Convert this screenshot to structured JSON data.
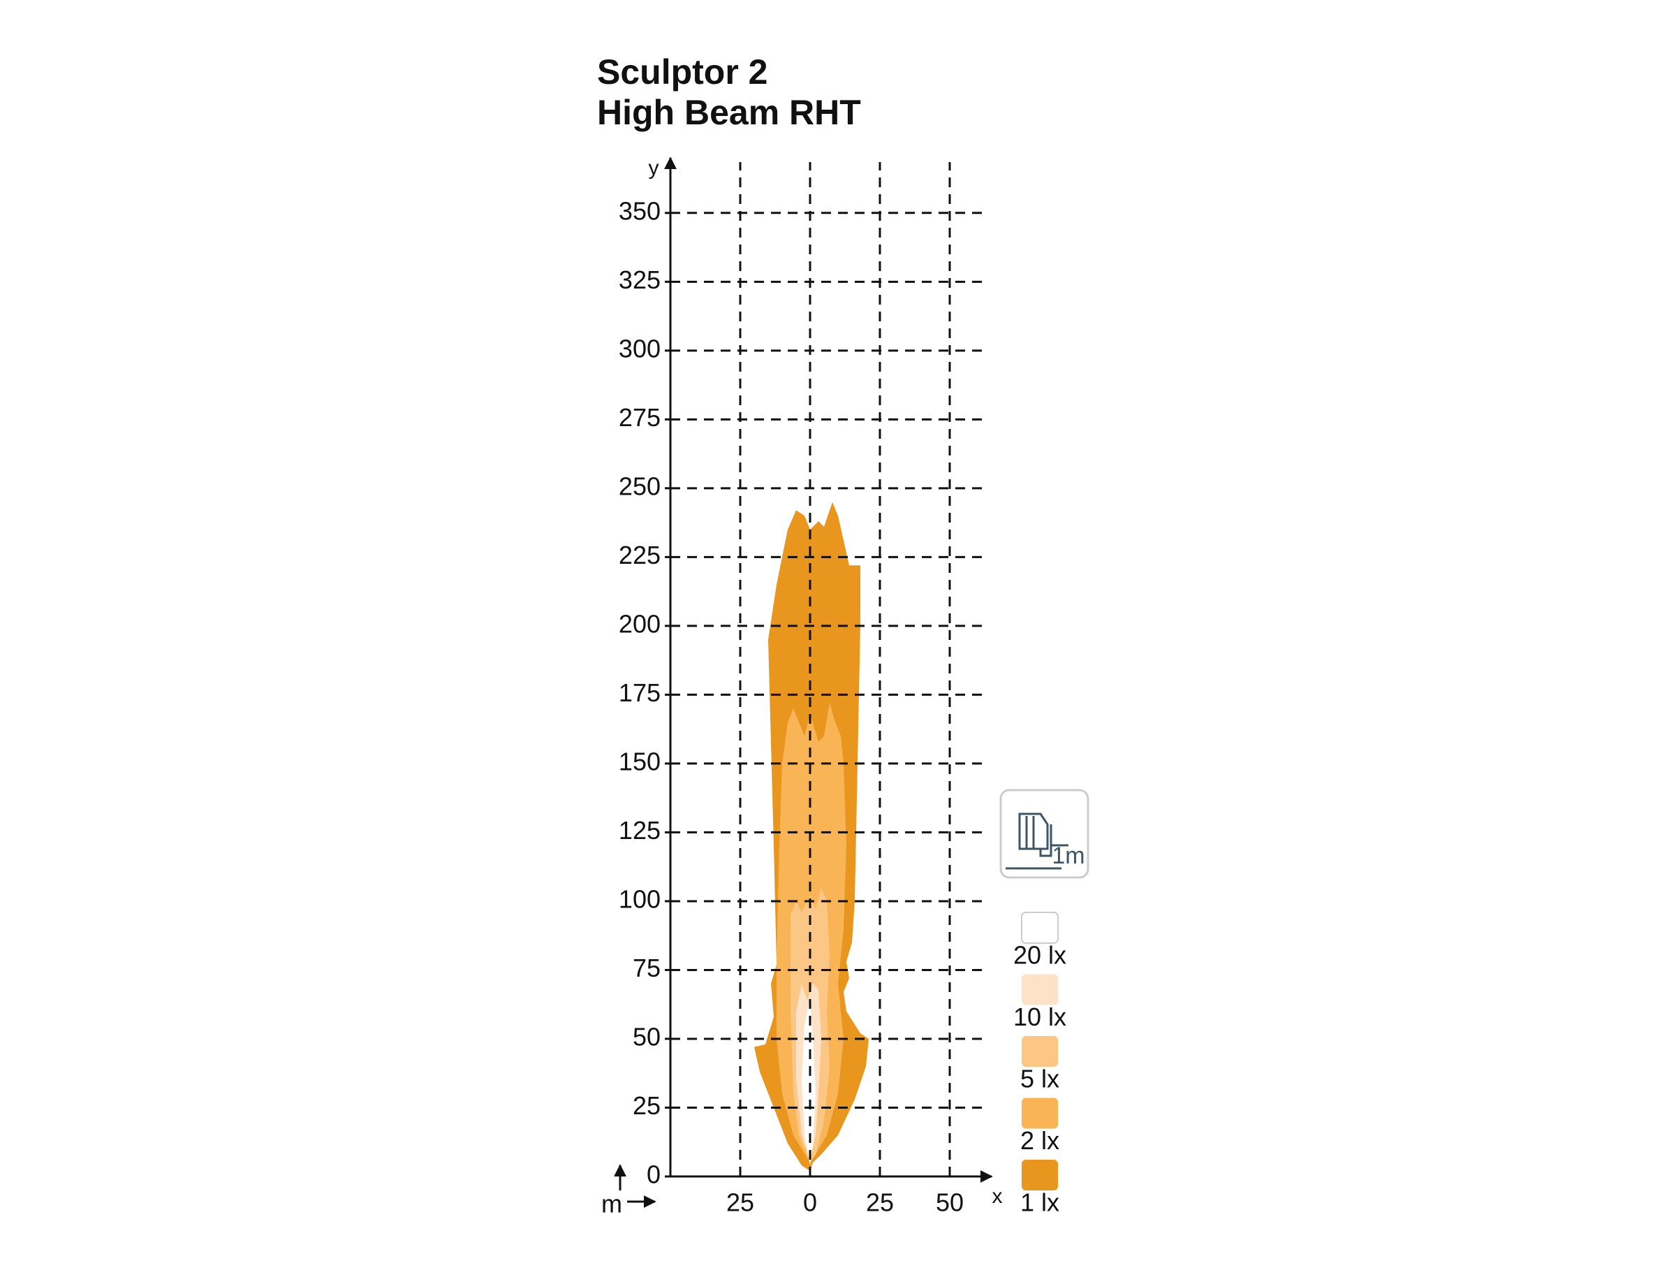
{
  "chart_data": {
    "type": "isolux",
    "title": [
      "Sculptor 2",
      "High Beam RHT"
    ],
    "x_label": "x",
    "y_label": "y",
    "unit_label": "m",
    "mounting_height_label": "1m",
    "xlim": [
      -50,
      65
    ],
    "ylim": [
      0,
      370
    ],
    "xticks": [
      {
        "value": -25,
        "label": "25"
      },
      0,
      25,
      50
    ],
    "yticks": [
      0,
      25,
      50,
      75,
      100,
      125,
      150,
      175,
      200,
      225,
      250,
      275,
      300,
      325,
      350
    ],
    "grid": true,
    "series": [
      {
        "name": "1 lx",
        "color": "#e8961e",
        "x": [
          0,
          -3,
          -8,
          -13,
          -18,
          -20,
          -16,
          -13,
          -14,
          -12,
          -13,
          -15,
          -12,
          -8,
          -5,
          -2,
          0,
          3,
          5,
          8,
          10,
          14,
          18,
          18,
          17,
          16,
          15,
          13,
          14,
          12,
          13,
          18,
          21,
          20,
          16,
          10,
          4,
          1
        ],
        "y": [
          2,
          4,
          12,
          25,
          38,
          47,
          48,
          58,
          70,
          77,
          120,
          195,
          215,
          235,
          242,
          240,
          235,
          238,
          236,
          245,
          240,
          222,
          222,
          200,
          150,
          100,
          85,
          78,
          72,
          67,
          60,
          52,
          50,
          40,
          28,
          15,
          8,
          5
        ]
      },
      {
        "name": "2 lx",
        "color": "#f9b555",
        "x": [
          0,
          -6,
          -10,
          -12,
          -12,
          -11,
          -10,
          -8,
          -6,
          -4,
          -2,
          0,
          3,
          5,
          7,
          9,
          11,
          12,
          13,
          12,
          10,
          12,
          10,
          6,
          2
        ],
        "y": [
          5,
          15,
          30,
          50,
          80,
          120,
          150,
          165,
          170,
          165,
          160,
          168,
          158,
          160,
          172,
          165,
          160,
          150,
          120,
          90,
          70,
          50,
          30,
          15,
          8
        ]
      },
      {
        "name": "5 lx",
        "color": "#fcc784",
        "x": [
          0,
          -4,
          -6,
          -7,
          -7,
          -5,
          -3,
          0,
          2,
          4,
          6,
          7,
          6,
          7,
          5,
          2
        ],
        "y": [
          5,
          15,
          30,
          60,
          95,
          100,
          96,
          102,
          97,
          105,
          100,
          80,
          60,
          40,
          20,
          8
        ]
      },
      {
        "name": "10 lx",
        "color": "#fde2c8",
        "x": [
          0,
          -3,
          -5,
          -5,
          -3,
          -1,
          1,
          3,
          4,
          3,
          2
        ],
        "y": [
          6,
          15,
          35,
          60,
          70,
          64,
          70,
          68,
          50,
          30,
          15
        ]
      },
      {
        "name": "20 lx",
        "color": "#ffffff",
        "x": [
          0,
          -2,
          -3,
          -2,
          0,
          1,
          2,
          1
        ],
        "y": [
          4,
          15,
          35,
          55,
          65,
          50,
          30,
          12
        ]
      }
    ]
  }
}
